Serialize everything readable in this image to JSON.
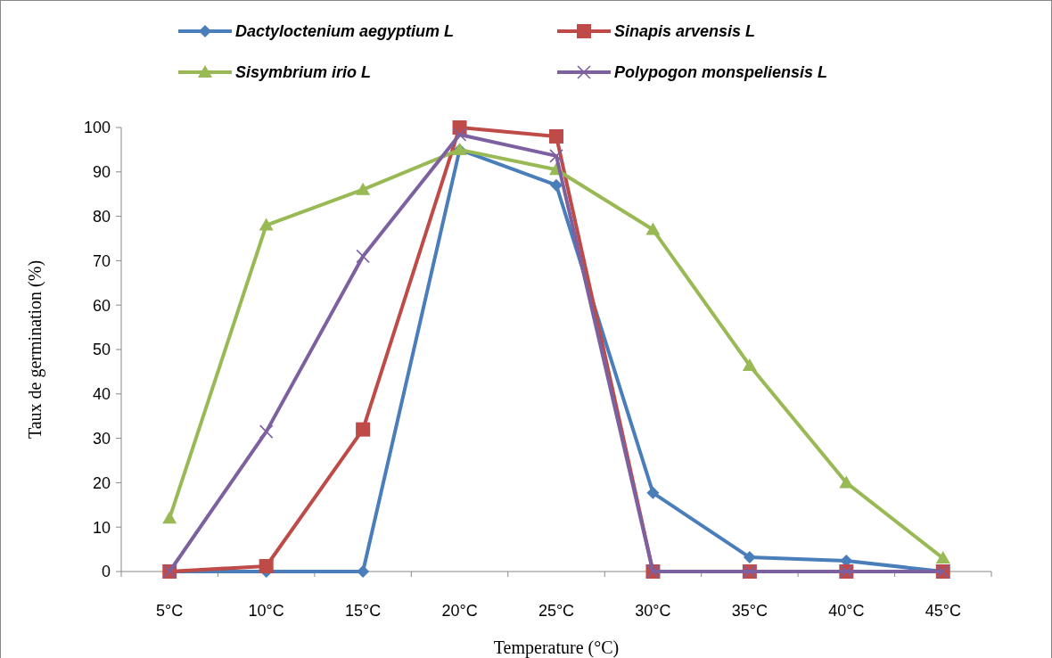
{
  "chart_data": {
    "type": "line",
    "xlabel": "Temperature (°C)",
    "ylabel": "Taux de germination (%)",
    "categories": [
      "5°C",
      "10°C",
      "15°C",
      "20°C",
      "25°C",
      "30°C",
      "35°C",
      "40°C",
      "45°C"
    ],
    "ylim": [
      0,
      100
    ],
    "yticks": [
      0,
      10,
      20,
      30,
      40,
      50,
      60,
      70,
      80,
      90,
      100
    ],
    "grid": false,
    "legend": "top",
    "series": [
      {
        "name": "Dactyloctenium aegyptium L",
        "color": "#4a7ebb",
        "marker": "diamond",
        "values": [
          0,
          0,
          0,
          95,
          87,
          17.7,
          3.2,
          2.4,
          0
        ]
      },
      {
        "name": "Sinapis arvensis L",
        "color": "#be4b48",
        "marker": "square",
        "values": [
          0,
          1.2,
          32,
          100,
          98,
          0,
          0,
          0,
          0
        ]
      },
      {
        "name": "Sisymbrium irio L",
        "color": "#98b954",
        "marker": "triangle",
        "values": [
          12,
          78,
          86,
          95,
          90.5,
          77,
          46.4,
          20,
          3
        ]
      },
      {
        "name": "Polypogon monspeliensis L",
        "color": "#7d60a0",
        "marker": "cross",
        "values": [
          0,
          31.5,
          71,
          98.4,
          93.6,
          0,
          0,
          0,
          0
        ]
      }
    ]
  }
}
